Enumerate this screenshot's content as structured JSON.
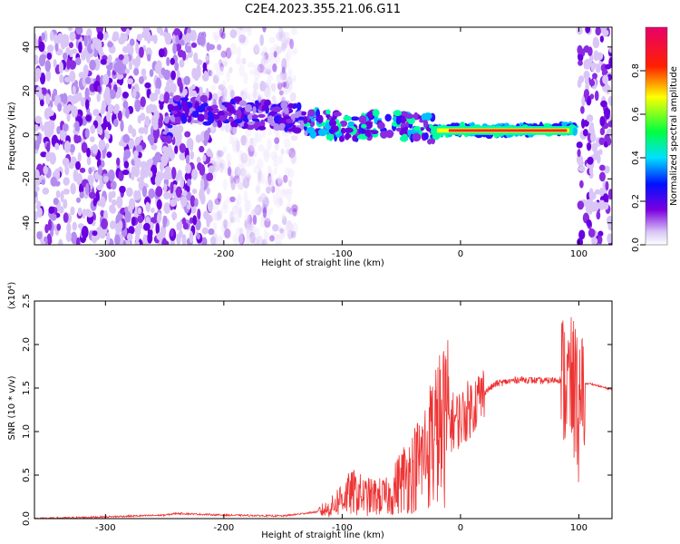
{
  "title": "C2E4.2023.355.21.06.G11",
  "chart_data": [
    {
      "type": "heatmap",
      "xlabel": "Height of straight line (km)",
      "ylabel": "Frequency (Hz)",
      "xlim": [
        -360,
        128
      ],
      "ylim": [
        -50,
        49
      ],
      "xticks": [
        -300,
        -200,
        -100,
        0,
        100
      ],
      "yticks": [
        -40,
        -20,
        0,
        20,
        40
      ],
      "colorbar": {
        "label": "Normalized spectral amplitude",
        "range": [
          0,
          1
        ],
        "ticks": [
          "0.0",
          "0.2",
          "0.4",
          "0.6",
          "0.8"
        ],
        "colormap": [
          "#f2ecfc",
          "#7b00e0",
          "#0010ff",
          "#00e0ff",
          "#00ff40",
          "#ffff00",
          "#ff0000",
          "#e8006a"
        ]
      },
      "ridge": {
        "description_points_x": [
          -245,
          -200,
          -170,
          -140,
          -115,
          -90,
          -70,
          -50,
          -30,
          -15,
          0,
          40,
          90,
          97
        ],
        "description_points_y": [
          11,
          11,
          9,
          8,
          5,
          3,
          6,
          4,
          3,
          2,
          2,
          2,
          3,
          3
        ]
      },
      "noise_region_x": [
        -360,
        -140
      ],
      "noise_region_right_x": [
        100,
        128
      ]
    },
    {
      "type": "line",
      "xlabel": "Height of straight line (km)",
      "ylabel": "SNR (10 * v/v)",
      "yscale_label": "(x10⁴)",
      "xlim": [
        -360,
        128
      ],
      "ylim": [
        0,
        2.5
      ],
      "xticks": [
        -300,
        -200,
        -100,
        0,
        100
      ],
      "yticks": [
        "0.0",
        "0.5",
        "1.0",
        "1.5",
        "2.0",
        "2.5"
      ],
      "series": [
        {
          "color": "#ee3333",
          "x": [
            -360,
            -300,
            -250,
            -240,
            -200,
            -150,
            -120,
            -110,
            -100,
            -90,
            -80,
            -60,
            -50,
            -40,
            -30,
            -20,
            -15,
            -10,
            0,
            10,
            20,
            30,
            50,
            70,
            85,
            95,
            100,
            105,
            110,
            128
          ],
          "y": [
            0.0,
            0.02,
            0.04,
            0.06,
            0.04,
            0.03,
            0.08,
            0.12,
            0.25,
            0.3,
            0.25,
            0.25,
            0.45,
            0.55,
            0.75,
            1.0,
            1.05,
            1.1,
            1.15,
            1.3,
            1.45,
            1.55,
            1.6,
            1.58,
            1.6,
            1.5,
            1.2,
            1.55,
            1.55,
            1.48
          ]
        }
      ]
    }
  ]
}
